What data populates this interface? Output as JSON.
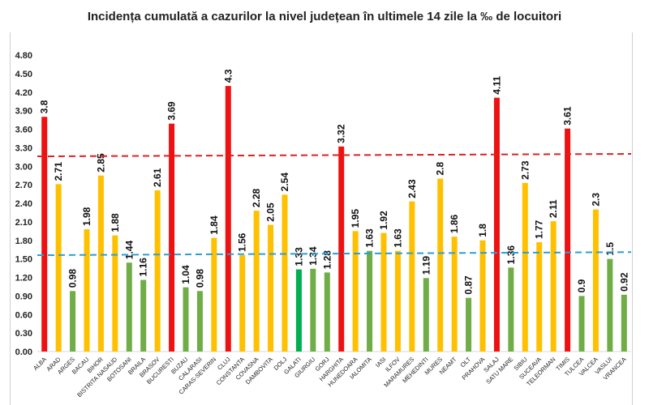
{
  "chart_data": {
    "type": "bar",
    "title": "Incidența cumulată a cazurilor la nivel județean în ultimele 14 zile la ‰ de locuitori",
    "xlabel": "",
    "ylabel": "",
    "ylim": [
      0,
      4.8
    ],
    "yticks": [
      "0.00",
      "0.30",
      "0.60",
      "0.90",
      "1.20",
      "1.50",
      "1.80",
      "2.10",
      "2.40",
      "2.70",
      "3.00",
      "3.30",
      "3.60",
      "3.90",
      "4.20",
      "4.50",
      "4.80"
    ],
    "grid": false,
    "categories": [
      "ALBA",
      "ARAD",
      "ARGES",
      "BACAU",
      "BIHOR",
      "BISTRITA NASAUD",
      "BOTOSANI",
      "BRAILA",
      "BRASOV",
      "BUCURESTI",
      "BUZAU",
      "CALARASI",
      "CARAS-SEVERIN",
      "CLUJ",
      "CONSTANTA",
      "COVASNA",
      "DAMBOVITA",
      "DOLJ",
      "GALATI",
      "GIURGIU",
      "GORJ",
      "HARGHITA",
      "HUNEDOARA",
      "IALOMITA",
      "IASI",
      "ILFOV",
      "MARAMURES",
      "MEHEDINTI",
      "MURES",
      "NEAMT",
      "OLT",
      "PRAHOVA",
      "SALAJ",
      "SATU MARE",
      "SIBIU",
      "SUCEAVA",
      "TELEORMAN",
      "TIMIS",
      "TULCEA",
      "VALCEA",
      "VASLUI",
      "VRANCEA"
    ],
    "values": [
      3.8,
      2.71,
      0.98,
      1.98,
      2.85,
      1.88,
      1.44,
      1.16,
      2.61,
      3.69,
      1.04,
      0.98,
      1.84,
      4.3,
      1.56,
      2.28,
      2.05,
      2.54,
      1.33,
      1.34,
      1.28,
      3.32,
      1.95,
      1.63,
      1.92,
      1.63,
      2.43,
      1.19,
      2.8,
      1.86,
      0.87,
      1.8,
      4.11,
      1.36,
      2.73,
      1.77,
      2.11,
      3.61,
      0.9,
      2.3,
      1.5,
      0.92
    ],
    "labels": [
      "3.8",
      "2.71",
      "0.98",
      "1.98",
      "2.85",
      "1.88",
      "1.44",
      "1.16",
      "2.61",
      "3.69",
      "1.04",
      "0.98",
      "1.84",
      "4.3",
      "1.56",
      "2.28",
      "2.05",
      "2.54",
      "1.33",
      "1.34",
      "1.28",
      "3.32",
      "1.95",
      "1.63",
      "1.92",
      "1.63",
      "2.43",
      "1.19",
      "2.8",
      "1.86",
      "0.87",
      "1.8",
      "4.11",
      "1.36",
      "2.73",
      "1.77",
      "2.11",
      "3.61",
      "0.9",
      "2.3",
      "1.5",
      "0.92"
    ],
    "bar_colors": [
      "red",
      "yellow",
      "green",
      "yellow",
      "yellow",
      "yellow",
      "green",
      "green",
      "yellow",
      "red",
      "green",
      "green",
      "yellow",
      "red",
      "yellow",
      "yellow",
      "yellow",
      "yellow",
      "darkgreen",
      "green",
      "green",
      "red",
      "yellow",
      "green",
      "yellow",
      "yellow",
      "yellow",
      "green",
      "yellow",
      "yellow",
      "green",
      "yellow",
      "red",
      "green",
      "yellow",
      "yellow",
      "yellow",
      "red",
      "green",
      "yellow",
      "green",
      "green"
    ],
    "palette": {
      "red": "#ee1111",
      "yellow": "#ffc000",
      "green": "#70ad47",
      "darkgreen": "#00b050"
    },
    "reference_lines": [
      {
        "style": "dashed",
        "color": "#dd2222",
        "y_start": 3.16,
        "y_end": 3.2
      },
      {
        "style": "dashed",
        "color": "#2a9fd6",
        "y_start": 1.56,
        "y_end": 1.61
      }
    ]
  }
}
